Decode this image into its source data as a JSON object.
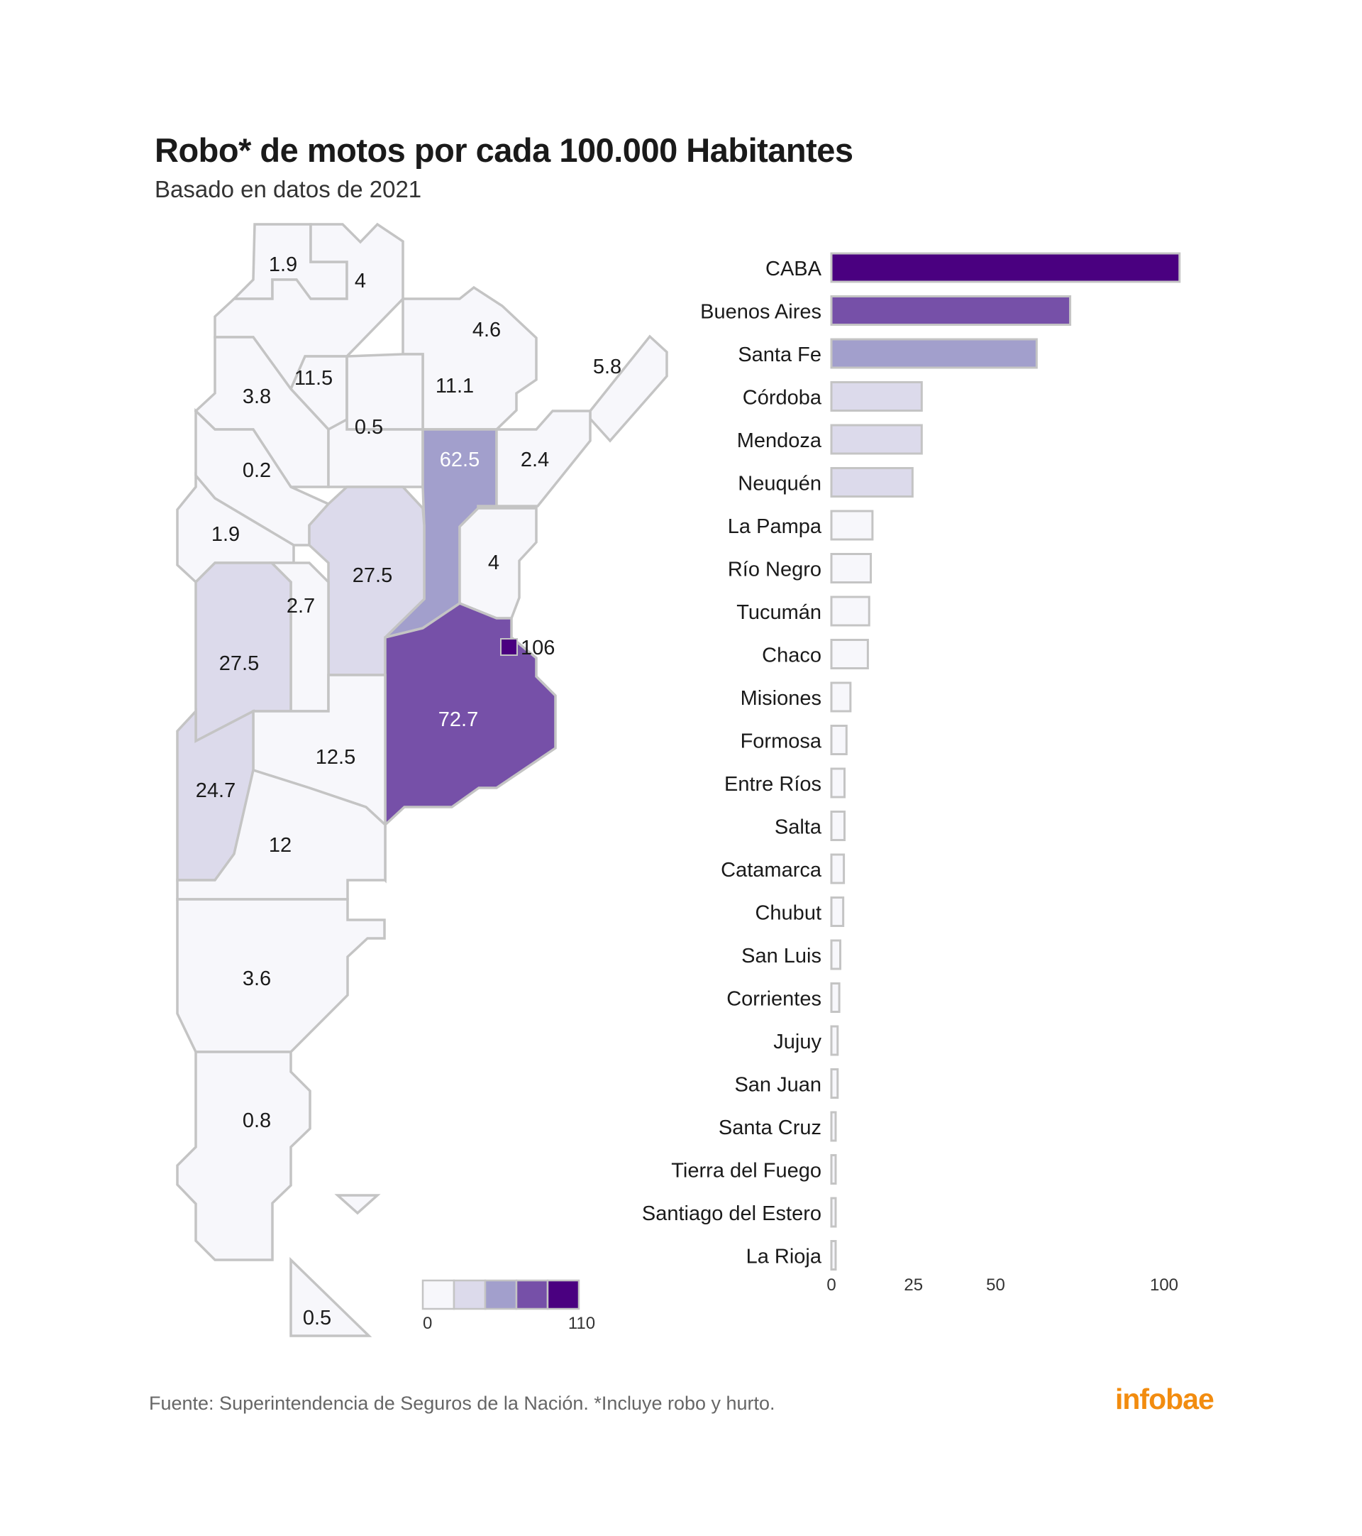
{
  "header": {
    "title": "Robo* de motos por cada 100.000 Habitantes",
    "subtitle": "Basado en datos de 2021"
  },
  "footer": {
    "source": "Fuente: Superintendencia de Seguros de la Nación. *Incluye robo y hurto.",
    "brand": "infobae"
  },
  "colors": {
    "scale": [
      "#f7f7fb",
      "#dcdaeb",
      "#a29fcc",
      "#7650a8",
      "#4a0080"
    ],
    "region_stroke": "#c4c4c4",
    "brand": "#f28c0f"
  },
  "map": {
    "legend": {
      "min_label": "0",
      "max_label": "110"
    },
    "regions": [
      {
        "name": "Jujuy",
        "value": 1.9,
        "label": "1.9"
      },
      {
        "name": "Salta",
        "value": 4,
        "label": "4"
      },
      {
        "name": "Formosa",
        "value": 4.6,
        "label": "4.6"
      },
      {
        "name": "Misiones",
        "value": 5.8,
        "label": "5.8"
      },
      {
        "name": "Tucumán",
        "value": 11.5,
        "label": "11.5"
      },
      {
        "name": "Catamarca",
        "value": 3.8,
        "label": "3.8"
      },
      {
        "name": "Chaco",
        "value": 11.1,
        "label": "11.1"
      },
      {
        "name": "Santiago del Estero",
        "value": 0.5,
        "label": "0.5"
      },
      {
        "name": "La Rioja",
        "value": 0.2,
        "label": "0.2"
      },
      {
        "name": "Santa Fe",
        "value": 62.5,
        "label": "62.5"
      },
      {
        "name": "Corrientes",
        "value": 2.4,
        "label": "2.4"
      },
      {
        "name": "San Juan",
        "value": 1.9,
        "label": "1.9"
      },
      {
        "name": "Córdoba",
        "value": 27.5,
        "label": "27.5"
      },
      {
        "name": "Entre Ríos",
        "value": 4,
        "label": "4"
      },
      {
        "name": "San Luis",
        "value": 2.7,
        "label": "2.7"
      },
      {
        "name": "Mendoza",
        "value": 27.5,
        "label": "27.5"
      },
      {
        "name": "CABA",
        "value": 106,
        "label": "106"
      },
      {
        "name": "Buenos Aires",
        "value": 72.7,
        "label": "72.7"
      },
      {
        "name": "La Pampa",
        "value": 12.5,
        "label": "12.5"
      },
      {
        "name": "Neuquén",
        "value": 24.7,
        "label": "24.7"
      },
      {
        "name": "Río Negro",
        "value": 12,
        "label": "12"
      },
      {
        "name": "Chubut",
        "value": 3.6,
        "label": "3.6"
      },
      {
        "name": "Santa Cruz",
        "value": 0.8,
        "label": "0.8"
      },
      {
        "name": "Tierra del Fuego",
        "value": 0.5,
        "label": "0.5"
      }
    ]
  },
  "chart_data": {
    "type": "bar",
    "orientation": "horizontal",
    "categories": [
      "CABA",
      "Buenos Aires",
      "Santa Fe",
      "Córdoba",
      "Mendoza",
      "Neuquén",
      "La Pampa",
      "Río Negro",
      "Tucumán",
      "Chaco",
      "Misiones",
      "Formosa",
      "Entre Ríos",
      "Salta",
      "Catamarca",
      "Chubut",
      "San Luis",
      "Corrientes",
      "Jujuy",
      "San Juan",
      "Santa Cruz",
      "Tierra del Fuego",
      "Santiago del Estero",
      "La Rioja"
    ],
    "values": [
      106,
      72.7,
      62.5,
      27.5,
      27.5,
      24.7,
      12.5,
      12,
      11.5,
      11.1,
      5.8,
      4.6,
      4,
      4,
      3.8,
      3.6,
      2.7,
      2.4,
      1.9,
      1.9,
      0.8,
      0.5,
      0.5,
      0.2
    ],
    "xticks": [
      0,
      25,
      50,
      100
    ],
    "xlim": [
      0,
      110
    ],
    "grid": false,
    "title": "Robo* de motos por cada 100.000 Habitantes",
    "subtitle": "Basado en datos de 2021"
  }
}
